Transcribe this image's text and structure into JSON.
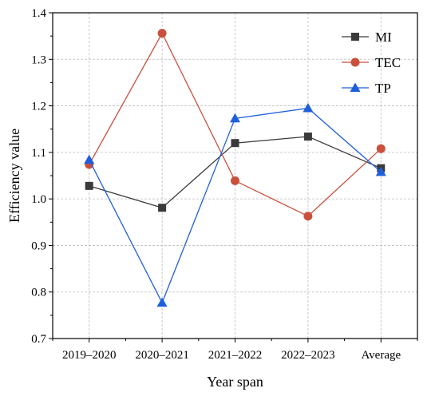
{
  "chart_data": {
    "type": "line",
    "categories": [
      "2019–2020",
      "2020–2021",
      "2021–2022",
      "2022–2023",
      "Average"
    ],
    "xlabel": "Year span",
    "ylabel": "Efficiency value",
    "ylim": [
      0.7,
      1.4
    ],
    "yticks": [
      "0.7",
      "0.8",
      "0.9",
      "1.0",
      "1.1",
      "1.2",
      "1.3",
      "1.4"
    ],
    "grid": true,
    "legend": "top-right",
    "series": [
      {
        "name": "MI",
        "color": "#3a3a3a",
        "marker": "square",
        "values": [
          1.028,
          0.981,
          1.12,
          1.134,
          1.066
        ]
      },
      {
        "name": "TEC",
        "color": "#c8503c",
        "marker": "circle",
        "values": [
          1.074,
          1.356,
          1.039,
          0.963,
          1.108
        ]
      },
      {
        "name": "TP",
        "color": "#1f5fdc",
        "marker": "triangle",
        "values": [
          1.084,
          0.777,
          1.173,
          1.195,
          1.058
        ]
      }
    ]
  }
}
